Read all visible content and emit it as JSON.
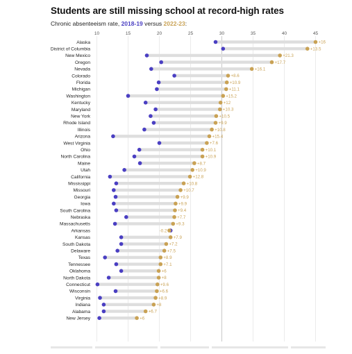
{
  "title": "Students are still missing school at record-high rates",
  "subtitle": {
    "prefix": "Chronic absenteeism rate, ",
    "series1": "2018-19",
    "middle": " versus ",
    "series2": "2022-23",
    "suffix": ":"
  },
  "colors": {
    "series1": "#4a3fc2",
    "series2": "#c9a255",
    "connector": "#dedede",
    "grid": "#e3e3e3",
    "axis": "#c8c8c8"
  },
  "chart_data": {
    "type": "dot-range",
    "x_ticks": [
      10,
      15,
      20,
      25,
      30,
      35,
      40,
      45
    ],
    "xlim": [
      10,
      45
    ],
    "grid": true,
    "series": [
      {
        "name": "2018-19",
        "color": "#4a3fc2"
      },
      {
        "name": "2022-23",
        "color": "#c9a255"
      }
    ],
    "rows": [
      {
        "state": "Alaska",
        "v2019": 29.0,
        "v2023": 45.0,
        "change": "+16"
      },
      {
        "state": "District of Columbia",
        "v2019": 30.2,
        "v2023": 43.7,
        "change": "+13.5"
      },
      {
        "state": "New Mexico",
        "v2019": 18.0,
        "v2023": 39.3,
        "change": "+21.3"
      },
      {
        "state": "Oregon",
        "v2019": 20.3,
        "v2023": 38.0,
        "change": "+17.7"
      },
      {
        "state": "Nevada",
        "v2019": 18.7,
        "v2023": 34.8,
        "change": "+16.1"
      },
      {
        "state": "Colorado",
        "v2019": 22.4,
        "v2023": 31.0,
        "change": "+8.6"
      },
      {
        "state": "Florida",
        "v2019": 19.9,
        "v2023": 30.8,
        "change": "+10.9"
      },
      {
        "state": "Michigan",
        "v2019": 19.6,
        "v2023": 30.7,
        "change": "+11.1"
      },
      {
        "state": "Washington",
        "v2019": 15.0,
        "v2023": 30.2,
        "change": "+15.2"
      },
      {
        "state": "Kentucky",
        "v2019": 17.8,
        "v2023": 29.8,
        "change": "+12"
      },
      {
        "state": "Maryland",
        "v2019": 19.4,
        "v2023": 29.7,
        "change": "+10.3"
      },
      {
        "state": "New York",
        "v2019": 18.6,
        "v2023": 29.1,
        "change": "+10.5"
      },
      {
        "state": "Rhode Island",
        "v2019": 19.1,
        "v2023": 29.0,
        "change": "+9.9"
      },
      {
        "state": "Illinois",
        "v2019": 17.6,
        "v2023": 28.4,
        "change": "+10.8"
      },
      {
        "state": "Arizona",
        "v2019": 12.6,
        "v2023": 28.0,
        "change": "+15.4"
      },
      {
        "state": "West Virginia",
        "v2019": 20.0,
        "v2023": 27.6,
        "change": "+7.6"
      },
      {
        "state": "Ohio",
        "v2019": 16.8,
        "v2023": 26.9,
        "change": "+10.1"
      },
      {
        "state": "North Carolina",
        "v2019": 16.0,
        "v2023": 26.9,
        "change": "+10.9"
      },
      {
        "state": "Maine",
        "v2019": 16.9,
        "v2023": 25.6,
        "change": "+8.7"
      },
      {
        "state": "Utah",
        "v2019": 14.4,
        "v2023": 25.3,
        "change": "+10.9"
      },
      {
        "state": "California",
        "v2019": 12.1,
        "v2023": 24.9,
        "change": "+12.8"
      },
      {
        "state": "Mississippi",
        "v2019": 13.1,
        "v2023": 23.9,
        "change": "+10.8"
      },
      {
        "state": "Missouri",
        "v2019": 12.7,
        "v2023": 23.4,
        "change": "+10.7"
      },
      {
        "state": "Georgia",
        "v2019": 13.0,
        "v2023": 22.9,
        "change": "+9.9"
      },
      {
        "state": "Iowa",
        "v2019": 12.7,
        "v2023": 22.6,
        "change": "+9.9"
      },
      {
        "state": "South Carolina",
        "v2019": 13.1,
        "v2023": 22.5,
        "change": "+9.4"
      },
      {
        "state": "Nebraska",
        "v2019": 14.7,
        "v2023": 22.4,
        "change": "+7.7"
      },
      {
        "state": "Massachusetts",
        "v2019": 12.9,
        "v2023": 22.2,
        "change": "+9.3"
      },
      {
        "state": "Arkansas",
        "v2019": 21.8,
        "v2023": 21.6,
        "change": "-0.2"
      },
      {
        "state": "Kansas",
        "v2019": 13.9,
        "v2023": 21.8,
        "change": "+7.9"
      },
      {
        "state": "South Dakota",
        "v2019": 13.9,
        "v2023": 21.1,
        "change": "+7.2"
      },
      {
        "state": "Delaware",
        "v2019": 13.3,
        "v2023": 20.8,
        "change": "+7.5"
      },
      {
        "state": "Texas",
        "v2019": 11.3,
        "v2023": 20.2,
        "change": "+8.9"
      },
      {
        "state": "Tennessee",
        "v2019": 13.1,
        "v2023": 20.2,
        "change": "+7.1"
      },
      {
        "state": "Oklahoma",
        "v2019": 13.9,
        "v2023": 19.9,
        "change": "+6"
      },
      {
        "state": "North Dakota",
        "v2019": 11.9,
        "v2023": 19.9,
        "change": "+8"
      },
      {
        "state": "Connecticut",
        "v2019": 10.1,
        "v2023": 19.7,
        "change": "+9.6"
      },
      {
        "state": "Wisconsin",
        "v2019": 13.0,
        "v2023": 19.6,
        "change": "+6.6"
      },
      {
        "state": "Virginia",
        "v2019": 10.5,
        "v2023": 19.4,
        "change": "+8.9"
      },
      {
        "state": "Indiana",
        "v2019": 11.1,
        "v2023": 19.1,
        "change": "+8"
      },
      {
        "state": "Alabama",
        "v2019": 11.1,
        "v2023": 17.8,
        "change": "+6.7"
      },
      {
        "state": "New Jersey",
        "v2019": 10.4,
        "v2023": 16.4,
        "change": "+6"
      }
    ]
  }
}
